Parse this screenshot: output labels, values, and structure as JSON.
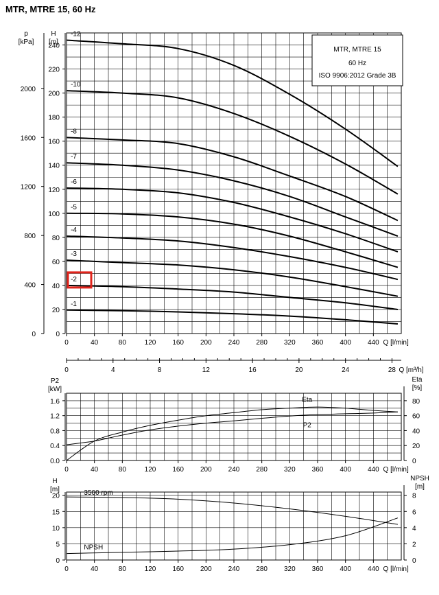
{
  "title": "MTR, MTRE 15, 60 Hz",
  "chart_data": [
    {
      "type": "line",
      "id": "head",
      "legend": {
        "title": "MTR, MTRE 15",
        "subtitle": "60 Hz",
        "note": "ISO 9906:2012 Grade 3B"
      },
      "xlabel": "Q [l/min]",
      "x_ticks": [
        0,
        40,
        80,
        120,
        160,
        200,
        240,
        280,
        320,
        360,
        400,
        440
      ],
      "xlim": [
        0,
        480
      ],
      "ylabel_left": "p\n[kPa]",
      "ylabel": "H\n[m]",
      "ylim": [
        0,
        250
      ],
      "y_ticks": [
        0,
        20,
        40,
        60,
        80,
        100,
        120,
        140,
        160,
        180,
        200,
        220,
        240
      ],
      "p_ticks": [
        0,
        400,
        800,
        1200,
        1600,
        2000
      ],
      "highlight_label": "-2",
      "series": [
        {
          "name": "-1",
          "x": [
            0,
            80,
            160,
            240,
            320,
            400,
            475
          ],
          "y": [
            19.5,
            19,
            18,
            16.5,
            14.5,
            11.5,
            8
          ]
        },
        {
          "name": "-2",
          "x": [
            0,
            80,
            160,
            240,
            320,
            400,
            475
          ],
          "y": [
            40,
            39,
            37,
            34.5,
            30,
            25.5,
            20
          ]
        },
        {
          "name": "-3",
          "x": [
            0,
            80,
            160,
            240,
            320,
            400,
            475
          ],
          "y": [
            61,
            59,
            57,
            53,
            47,
            39,
            31
          ]
        },
        {
          "name": "-4",
          "x": [
            0,
            80,
            160,
            240,
            320,
            400,
            475
          ],
          "y": [
            81,
            79.5,
            77,
            71.5,
            64,
            55,
            45
          ]
        },
        {
          "name": "-5",
          "x": [
            0,
            80,
            160,
            240,
            320,
            400,
            475
          ],
          "y": [
            100,
            99.5,
            97,
            91,
            81,
            68,
            55
          ]
        },
        {
          "name": "-6",
          "x": [
            0,
            80,
            160,
            240,
            320,
            400,
            475
          ],
          "y": [
            121,
            120,
            117,
            109,
            97,
            83,
            68
          ]
        },
        {
          "name": "-7",
          "x": [
            0,
            80,
            160,
            240,
            320,
            400,
            475
          ],
          "y": [
            142,
            140,
            136,
            127,
            114,
            97,
            81
          ]
        },
        {
          "name": "-8",
          "x": [
            0,
            80,
            160,
            240,
            320,
            400,
            475
          ],
          "y": [
            163,
            161,
            158,
            147,
            131,
            114,
            94
          ]
        },
        {
          "name": "-10",
          "x": [
            0,
            80,
            160,
            240,
            320,
            400,
            475
          ],
          "y": [
            202,
            200,
            196,
            183,
            164,
            141,
            116
          ]
        },
        {
          "name": "-12",
          "x": [
            0,
            80,
            160,
            240,
            320,
            400,
            475
          ],
          "y": [
            244,
            241,
            237,
            223,
            199,
            170,
            139
          ]
        }
      ]
    },
    {
      "type": "line",
      "id": "secondary-axis",
      "xlabel": "Q [m³/h]",
      "x_ticks": [
        0,
        4,
        8,
        12,
        16,
        20,
        24,
        28
      ]
    },
    {
      "type": "line",
      "id": "power",
      "xlabel": "Q [l/min]",
      "x_ticks": [
        0,
        40,
        80,
        120,
        160,
        200,
        240,
        280,
        320,
        360,
        400,
        440
      ],
      "ylabel": "P2\n[kW]",
      "y_ticks": [
        0,
        0.4,
        0.8,
        1.2,
        1.6
      ],
      "y_tick_labels": [
        "0.0",
        "0.4",
        "0.8",
        "1.2",
        "1.6"
      ],
      "ylim": [
        0,
        1.8
      ],
      "ylabel_right": "Eta\n[%]",
      "eta_ticks": [
        0,
        20,
        40,
        60,
        80
      ],
      "eta_lim": [
        0,
        90
      ],
      "series": [
        {
          "name": "P2",
          "x": [
            0,
            40,
            80,
            120,
            160,
            200,
            240,
            280,
            320,
            360,
            400,
            440,
            475
          ],
          "y": [
            0.42,
            0.52,
            0.68,
            0.82,
            0.92,
            1.0,
            1.06,
            1.13,
            1.19,
            1.23,
            1.25,
            1.27,
            1.3
          ]
        },
        {
          "name": "Eta",
          "x": [
            0,
            40,
            80,
            120,
            160,
            200,
            240,
            280,
            320,
            360,
            400,
            440,
            475
          ],
          "y": [
            0,
            26,
            38,
            47,
            54,
            60,
            64,
            68,
            70,
            71.5,
            70,
            67,
            65
          ]
        }
      ]
    },
    {
      "type": "line",
      "id": "npsh",
      "xlabel": "Q [l/min]",
      "x_ticks": [
        0,
        40,
        80,
        120,
        160,
        200,
        240,
        280,
        320,
        360,
        400,
        440
      ],
      "ylabel": "H\n[m]",
      "y_ticks": [
        0,
        5,
        10,
        15,
        20
      ],
      "ylim": [
        0,
        21
      ],
      "ylabel_right": "NPSH\n[m]",
      "npsh_ticks": [
        0,
        2,
        4,
        6,
        8
      ],
      "npsh_lim": [
        0,
        8.4
      ],
      "series": [
        {
          "name": "3500 rpm",
          "x": [
            0,
            80,
            160,
            240,
            320,
            400,
            475
          ],
          "y": [
            19.5,
            19.3,
            18.8,
            17.6,
            15.8,
            13.5,
            11
          ]
        },
        {
          "name": "NPSH",
          "x": [
            0,
            80,
            160,
            240,
            320,
            400,
            475
          ],
          "y": [
            0.8,
            0.95,
            1.1,
            1.35,
            1.9,
            3.0,
            5.2
          ]
        }
      ]
    }
  ]
}
